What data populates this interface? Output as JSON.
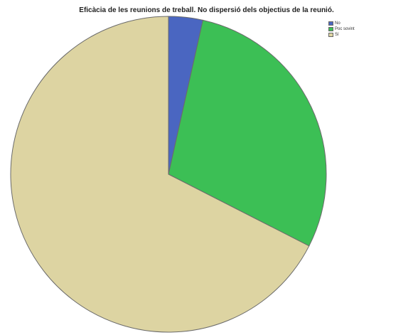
{
  "chart_data": {
    "type": "pie",
    "title": "Eficàcia de les reunions de treball. No dispersió dels objectius de la reunió.",
    "start_angle_deg": 0,
    "direction": "clockwise",
    "legend_position": "top-right",
    "series": [
      {
        "name": "No",
        "value": 3.5,
        "color": "#4a66c1"
      },
      {
        "name": "Poc sovint",
        "value": 29.0,
        "color": "#3cbf55"
      },
      {
        "name": "Sí",
        "value": 67.5,
        "color": "#ddd4a2"
      }
    ]
  }
}
